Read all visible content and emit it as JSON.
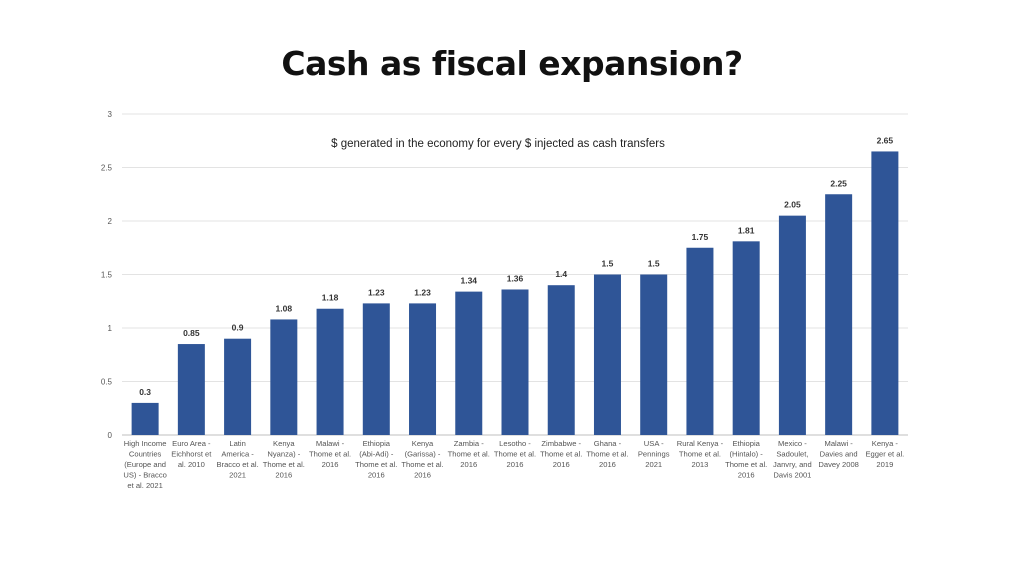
{
  "title": "Cash as fiscal expansion?",
  "chart_data": {
    "type": "bar",
    "subtitle": "$ generated in the economy for every $ injected as cash transfers",
    "ylim": [
      0,
      3
    ],
    "yticks": [
      "0",
      "0.5",
      "1",
      "1.5",
      "2",
      "2.5",
      "3"
    ],
    "grid": true,
    "bar_color": "#2F5597",
    "categories": [
      [
        "High Income",
        "Countries",
        "(Europe and",
        "US) - Bracco",
        "et al. 2021"
      ],
      [
        "Euro Area -",
        "Eichhorst et",
        "al. 2010"
      ],
      [
        "Latin",
        "America -",
        "Bracco et al.",
        "2021"
      ],
      [
        "Kenya",
        "Nyanza) -",
        "Thome et al.",
        "2016"
      ],
      [
        "Malawi -",
        "Thome et al.",
        "2016"
      ],
      [
        "Ethiopia",
        "(Abi-Adi) -",
        "Thome et al.",
        "2016"
      ],
      [
        "Kenya",
        "(Garissa) -",
        "Thome et al.",
        "2016"
      ],
      [
        "Zambia -",
        "Thome et al.",
        "2016"
      ],
      [
        "Lesotho -",
        "Thome et al.",
        "2016"
      ],
      [
        "Zimbabwe -",
        "Thome et al.",
        "2016"
      ],
      [
        "Ghana -",
        "Thome et al.",
        "2016"
      ],
      [
        "USA -",
        "Pennings",
        "2021"
      ],
      [
        "Rural Kenya -",
        "Thome et al.",
        "2013"
      ],
      [
        "Ethiopia",
        "(Hintalo) -",
        "Thome et al.",
        "2016"
      ],
      [
        "Mexico -",
        "Sadoulet,",
        "Janvry, and",
        "Davis 2001"
      ],
      [
        "Malawi -",
        "Davies and",
        "Davey 2008"
      ],
      [
        "Kenya -",
        "Egger et al.",
        "2019"
      ]
    ],
    "values": [
      0.3,
      0.85,
      0.9,
      1.08,
      1.18,
      1.23,
      1.23,
      1.34,
      1.36,
      1.4,
      1.5,
      1.5,
      1.75,
      1.81,
      2.05,
      2.25,
      2.65
    ],
    "value_labels": [
      "0.3",
      "0.85",
      "0.9",
      "1.08",
      "1.18",
      "1.23",
      "1.23",
      "1.34",
      "1.36",
      "1.4",
      "1.5",
      "1.5",
      "1.75",
      "1.81",
      "2.05",
      "2.25",
      "2.65"
    ]
  }
}
